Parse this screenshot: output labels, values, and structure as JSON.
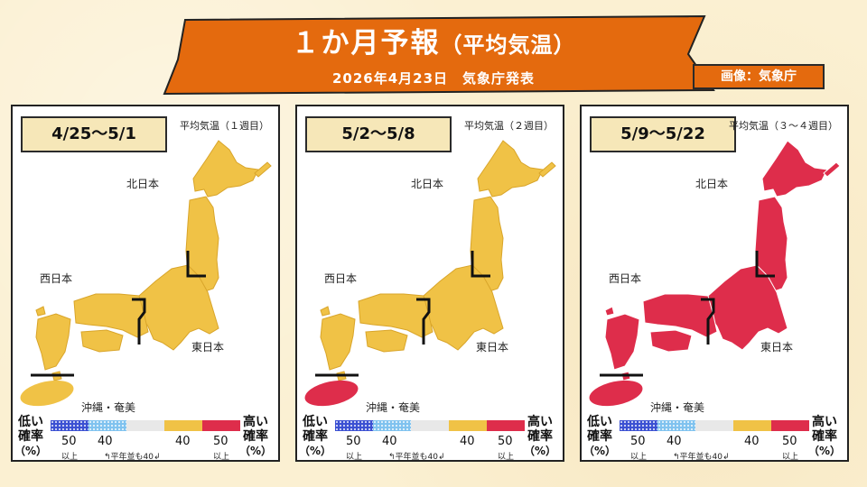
{
  "header": {
    "title_main": "１か月予報",
    "title_sub": "（平均気温）",
    "issued": "2026年4月23日　気象庁発表",
    "credit": "画像：気象庁",
    "banner_color": "#e46a0e"
  },
  "regions": {
    "north": "北日本",
    "west": "西日本",
    "east": "東日本",
    "okinawa": "沖縄・奄美"
  },
  "panels": [
    {
      "period": "4/25～5/1",
      "caption": "平均気温（１週目）",
      "fill": "#f0c246",
      "outline": "#d9a52a"
    },
    {
      "period": "5/2～5/8",
      "caption": "平均気温（２週目）",
      "fill": "#f0c246",
      "outline": "#d9a52a",
      "okinawa_fill": "#de2d4b"
    },
    {
      "period": "5/9～5/22",
      "caption": "平均気温（３～４週目）",
      "fill": "#de2d4b",
      "outline": "#ffffff"
    }
  ],
  "legend": {
    "low_label": "低い",
    "high_label": "高い",
    "prob_label": "確率",
    "percent_label": "（%）",
    "tick_50": "50",
    "tick_40": "40",
    "ijou": "以上",
    "normal_note": "平年並も40",
    "colors": [
      "#3a4fd2",
      "#7fc2ef",
      "#e8e8e8",
      "#f0c246",
      "#de2d4b"
    ]
  }
}
